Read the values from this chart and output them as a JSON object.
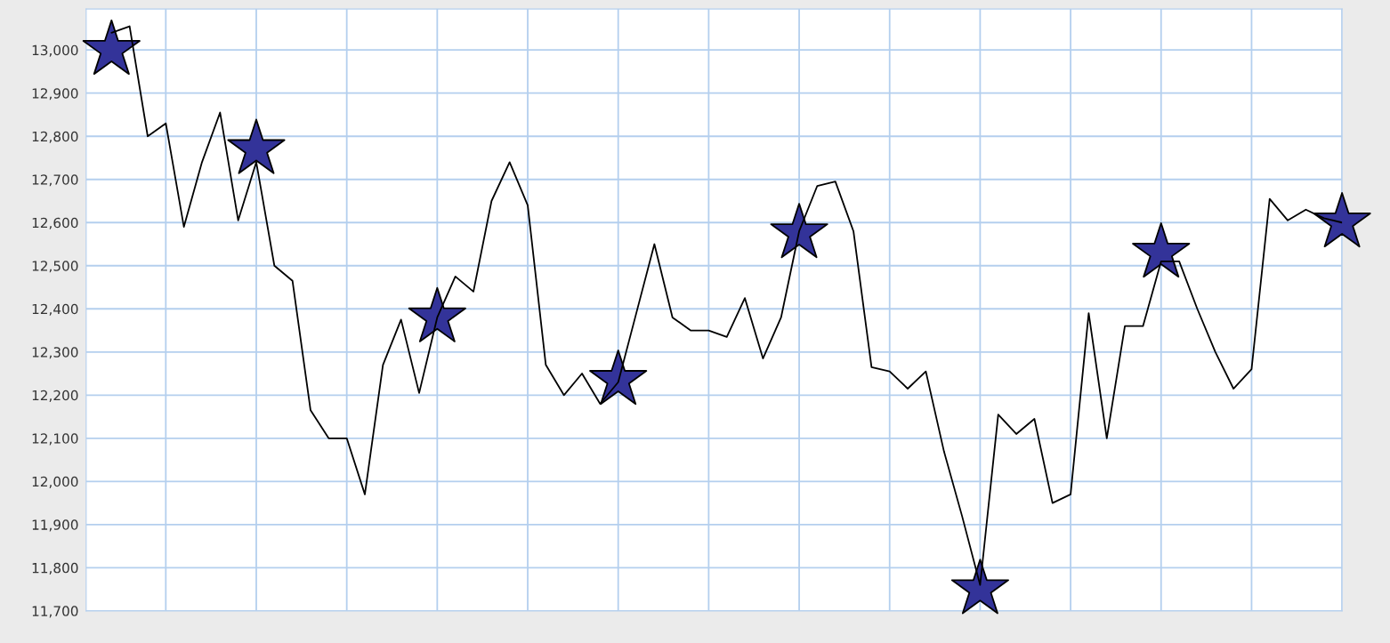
{
  "chart_data": {
    "type": "line",
    "categories": [
      null,
      null,
      null,
      null,
      null,
      null,
      null,
      null,
      null,
      null,
      null,
      null,
      null,
      null,
      null,
      null,
      null,
      null,
      null,
      null,
      null,
      null,
      null,
      null,
      null,
      null,
      null,
      null,
      null,
      null,
      null,
      null,
      null,
      null,
      null,
      null,
      null,
      null,
      null,
      null,
      null,
      null,
      null,
      null,
      null,
      null,
      null,
      null,
      null,
      null,
      null,
      null,
      null,
      null,
      null,
      null,
      null,
      null,
      null,
      null,
      null,
      null,
      null,
      null,
      null,
      null,
      null,
      null,
      null
    ],
    "series": [
      {
        "color": "#000000",
        "marker": "none",
        "values": [
          13040,
          13055,
          12800,
          12830,
          12590,
          12740,
          12855,
          12605,
          12740,
          12500,
          12465,
          12165,
          12100,
          12100,
          11970,
          12270,
          12375,
          12205,
          12380,
          12475,
          12440,
          12650,
          12740,
          12640,
          12270,
          12200,
          12250,
          12180,
          12230,
          12390,
          12550,
          12380,
          12350,
          12350,
          12335,
          12425,
          12285,
          12380,
          12580,
          12685,
          12695,
          12580,
          12265,
          12255,
          12215,
          12255,
          12070,
          11920,
          11760,
          12155,
          12110,
          12145,
          11950,
          11970,
          12390,
          12100,
          12360,
          12360,
          12510,
          12510,
          12400,
          12300,
          12215,
          12260,
          12655,
          12605,
          12630,
          12610,
          12600
        ]
      },
      {
        "type": "scatter",
        "color": "#333399",
        "marker": "star",
        "values": [
          13000,
          null,
          null,
          null,
          null,
          null,
          null,
          null,
          12770,
          null,
          null,
          null,
          null,
          null,
          null,
          null,
          null,
          null,
          12380,
          null,
          null,
          null,
          null,
          null,
          null,
          null,
          null,
          null,
          12235,
          null,
          null,
          null,
          null,
          null,
          null,
          null,
          null,
          null,
          12575,
          null,
          null,
          null,
          null,
          null,
          null,
          null,
          null,
          null,
          11750,
          null,
          null,
          null,
          null,
          null,
          null,
          null,
          null,
          null,
          12530,
          null,
          null,
          null,
          null,
          null,
          null,
          null,
          null,
          null,
          12600
        ]
      }
    ],
    "ylim": [
      11700,
      13095
    ],
    "yticks": [
      {
        "value": 11700,
        "label": "11,700"
      },
      {
        "value": 11800,
        "label": "11,800"
      },
      {
        "value": 11900,
        "label": "11,900"
      },
      {
        "value": 12000,
        "label": "12,000"
      },
      {
        "value": 12100,
        "label": "12,100"
      },
      {
        "value": 12200,
        "label": "12,200"
      },
      {
        "value": 12300,
        "label": "12,300"
      },
      {
        "value": 12400,
        "label": "12,400"
      },
      {
        "value": 12500,
        "label": "12,500"
      },
      {
        "value": 12600,
        "label": "12,600"
      },
      {
        "value": 12700,
        "label": "12,700"
      },
      {
        "value": 12800,
        "label": "12,800"
      },
      {
        "value": 12900,
        "label": "12,900"
      },
      {
        "value": 13000,
        "label": "13,000"
      }
    ],
    "grid": true,
    "tick_labels": "y"
  }
}
